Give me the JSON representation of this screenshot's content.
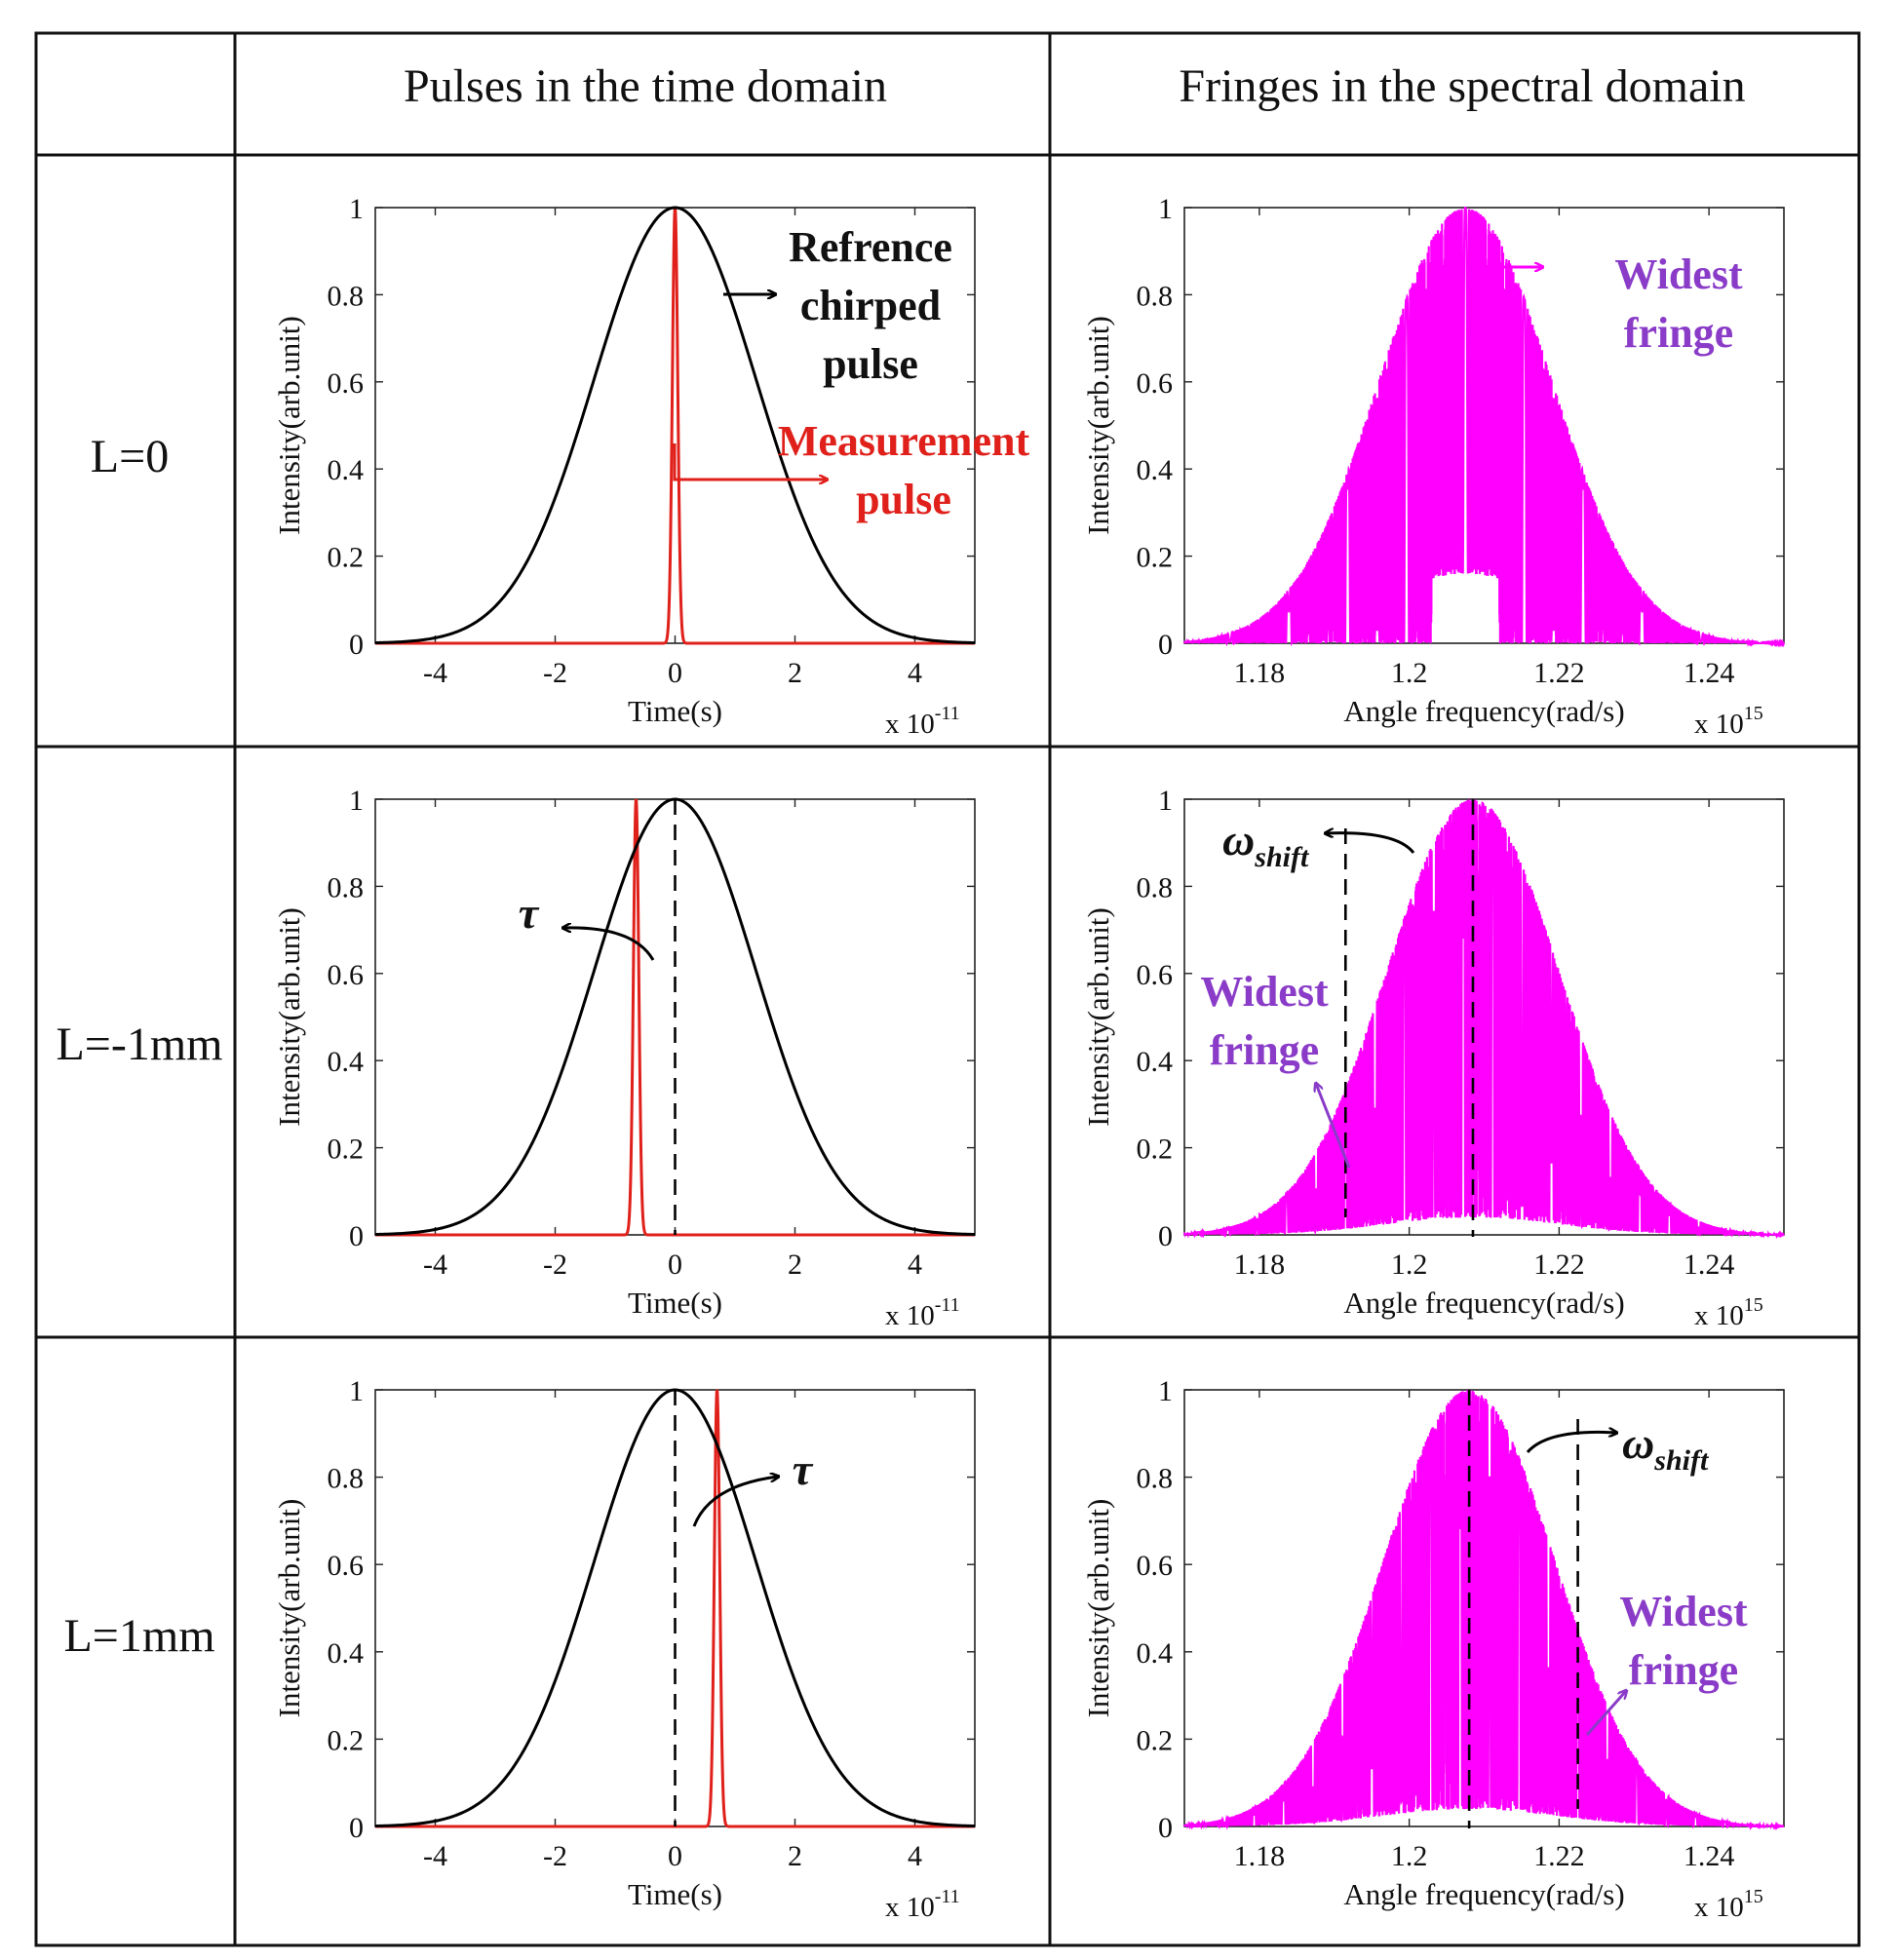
{
  "table": {
    "header_time": "Pulses in the time domain",
    "header_spectral": "Fringes in the spectral domain",
    "rows": [
      {
        "label": "L=0",
        "shift": 0
      },
      {
        "label": "L=-1mm",
        "shift": -1
      },
      {
        "label": "L=1mm",
        "shift": 1
      }
    ]
  },
  "colors": {
    "reference": "#000000",
    "measurement": "#e0201b",
    "fringe": "#ff00ff",
    "fringe_label": "#8a3cc8",
    "grid_border": "#111111"
  },
  "annotations": {
    "reference_label": [
      "Refrence",
      "chirped",
      "pulse"
    ],
    "measurement_label": [
      "Measurement",
      "pulse"
    ],
    "widest_fringe": [
      "Widest",
      "fringe"
    ],
    "tau": "τ",
    "omega": "ω",
    "omega_sub": "shift"
  },
  "chart_data": [
    {
      "type": "line",
      "panel": "time",
      "title": "Pulses in the time domain",
      "xlabel": "Time(s)",
      "ylabel": "Intensity(arb.unit)",
      "x_multiplier": "x 10",
      "x_multiplier_exp": "-11",
      "xlim": [
        -5,
        5
      ],
      "ylim": [
        0,
        1
      ],
      "xticks": [
        "-4",
        "-2",
        "0",
        "2",
        "4"
      ],
      "yticks": [
        "0",
        "0.2",
        "0.4",
        "0.6",
        "0.8",
        "1"
      ],
      "series": [
        {
          "name": "Refrence chirped pulse",
          "shape": "gaussian",
          "center": 0,
          "sigma": 1.35,
          "peak": 1
        },
        {
          "name": "Measurement pulse",
          "shape": "gaussian",
          "center_by_row": [
            0,
            -0.65,
            0.7
          ],
          "sigma": 0.045,
          "peak": 1
        }
      ]
    },
    {
      "type": "line",
      "panel": "spectral",
      "title": "Fringes in the spectral domain",
      "xlabel": "Angle frequency(rad/s)",
      "ylabel": "Intensity(arb.unit)",
      "x_multiplier": "x 10",
      "x_multiplier_exp": "15",
      "xlim": [
        1.17,
        1.25
      ],
      "ylim": [
        0,
        1
      ],
      "xticks": [
        "1.18",
        "1.2",
        "1.22",
        "1.24"
      ],
      "yticks": [
        "0",
        "0.2",
        "0.4",
        "0.6",
        "0.8",
        "1"
      ],
      "series": [
        {
          "name": "Interference fringes",
          "center_by_row": [
            1.2075,
            1.2085,
            1.208
          ],
          "widest_fringe_at_by_row": [
            1.2075,
            1.1915,
            1.2225
          ]
        }
      ]
    }
  ]
}
